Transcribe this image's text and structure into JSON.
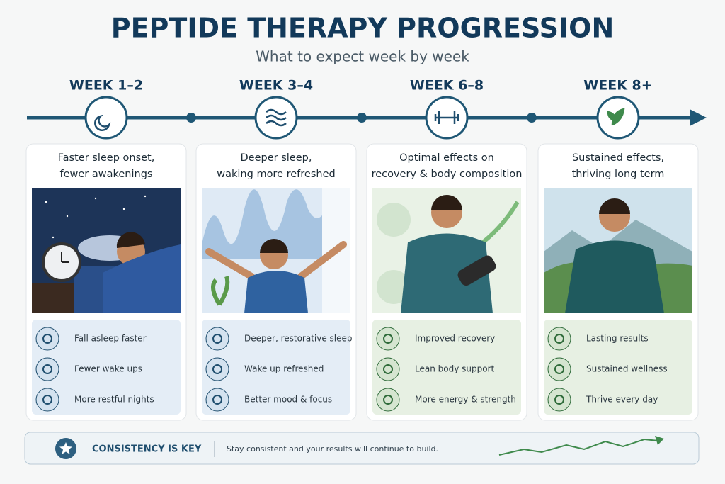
{
  "header": {
    "title": "PEPTIDE THERAPY PROGRESSION",
    "subtitle": "What to expect week by week"
  },
  "stages": [
    {
      "week": "WEEK 1–2",
      "headline": [
        "Faster sleep onset,",
        "fewer awakenings"
      ],
      "benefits": [
        "Fall asleep faster",
        "Fewer wake ups",
        "More restful nights"
      ]
    },
    {
      "week": "WEEK 3–4",
      "headline": [
        "Deeper sleep,",
        "waking more refreshed"
      ],
      "benefits": [
        "Deeper, restorative sleep",
        "Wake up refreshed",
        "Better mood & focus"
      ]
    },
    {
      "week": "WEEK 6–8",
      "headline": [
        "Optimal effects on",
        "recovery & body composition"
      ],
      "benefits": [
        "Improved recovery",
        "Lean body support",
        "More energy & strength"
      ]
    },
    {
      "week": "WEEK 8+",
      "headline": [
        "Sustained effects,",
        "thriving long term"
      ],
      "benefits": [
        "Lasting results",
        "Sustained wellness",
        "Thrive every day"
      ]
    }
  ],
  "footer": {
    "title": "CONSISTENCY IS KEY",
    "text": "Stay consistent and your results will continue to build."
  }
}
